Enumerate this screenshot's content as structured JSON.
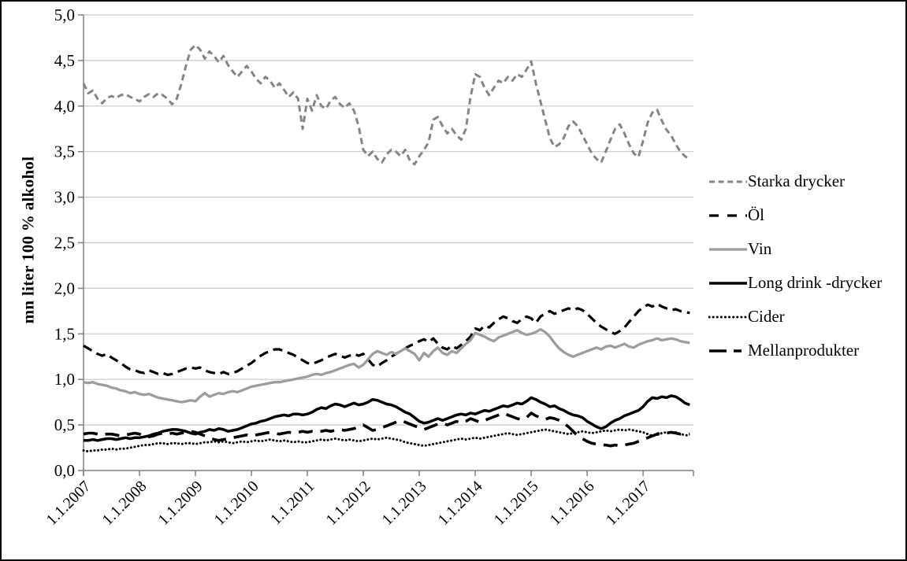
{
  "figure": {
    "background": "#ffffff",
    "border_color": "#000000"
  },
  "chart_data": {
    "type": "line",
    "title": "",
    "xlabel": "",
    "ylabel": "mn liter 100 % alkohol",
    "ylim": [
      0,
      5
    ],
    "ytick_step": 0.5,
    "ytick_labels": [
      "0,0",
      "0,5",
      "1,0",
      "1,5",
      "2,0",
      "2,5",
      "3,0",
      "3,5",
      "4,0",
      "4,5",
      "5,0"
    ],
    "xtick_labels": [
      "1.1.2007",
      "1.1.2008",
      "1.1.2009",
      "1.1.2010",
      "1.1.2011",
      "1.1.2012",
      "1.1.2013",
      "1.1.2014",
      "1.1.2015",
      "1.1.2016",
      "1.1.2017"
    ],
    "points_per_year": 12,
    "grid": "horizontal",
    "gridline_color": "#c9c9c9",
    "axis_color": "#808080",
    "legend_position": "right",
    "series": [
      {
        "name": "Starka drycker",
        "color": "#858585",
        "style": "dash",
        "width": 3,
        "dash": "8,5",
        "legend_dash": "7,4.6",
        "values": [
          4.25,
          4.14,
          4.17,
          4.08,
          4.03,
          4.09,
          4.11,
          4.09,
          4.12,
          4.13,
          4.1,
          4.08,
          4.05,
          4.1,
          4.13,
          4.1,
          4.14,
          4.12,
          4.08,
          4.02,
          4.08,
          4.25,
          4.45,
          4.62,
          4.67,
          4.62,
          4.52,
          4.6,
          4.55,
          4.48,
          4.55,
          4.45,
          4.38,
          4.32,
          4.38,
          4.44,
          4.38,
          4.3,
          4.25,
          4.32,
          4.28,
          4.2,
          4.25,
          4.18,
          4.1,
          4.15,
          4.08,
          3.75,
          4.08,
          3.95,
          4.12,
          4.0,
          3.97,
          4.06,
          4.1,
          4.02,
          3.98,
          4.03,
          3.95,
          3.78,
          3.52,
          3.45,
          3.5,
          3.42,
          3.38,
          3.47,
          3.52,
          3.5,
          3.45,
          3.52,
          3.4,
          3.36,
          3.45,
          3.52,
          3.6,
          3.85,
          3.88,
          3.78,
          3.7,
          3.75,
          3.68,
          3.63,
          3.75,
          4.1,
          4.35,
          4.32,
          4.2,
          4.12,
          4.2,
          4.28,
          4.25,
          4.32,
          4.28,
          4.35,
          4.32,
          4.4,
          4.49,
          4.25,
          4.05,
          3.85,
          3.65,
          3.55,
          3.58,
          3.65,
          3.78,
          3.83,
          3.78,
          3.68,
          3.58,
          3.48,
          3.42,
          3.38,
          3.5,
          3.63,
          3.75,
          3.8,
          3.7,
          3.58,
          3.48,
          3.44,
          3.62,
          3.82,
          3.93,
          3.96,
          3.84,
          3.74,
          3.68,
          3.58,
          3.5,
          3.45,
          3.41
        ]
      },
      {
        "name": "Öl",
        "color": "#000000",
        "style": "dash",
        "width": 3.2,
        "dash": "12,7",
        "legend_dash": "12,11",
        "values": [
          1.37,
          1.34,
          1.31,
          1.28,
          1.26,
          1.28,
          1.24,
          1.21,
          1.18,
          1.14,
          1.11,
          1.1,
          1.08,
          1.07,
          1.1,
          1.08,
          1.06,
          1.07,
          1.05,
          1.06,
          1.08,
          1.1,
          1.12,
          1.13,
          1.12,
          1.13,
          1.1,
          1.08,
          1.07,
          1.06,
          1.08,
          1.06,
          1.07,
          1.09,
          1.12,
          1.15,
          1.18,
          1.22,
          1.26,
          1.29,
          1.31,
          1.33,
          1.33,
          1.31,
          1.29,
          1.27,
          1.24,
          1.21,
          1.18,
          1.17,
          1.19,
          1.21,
          1.24,
          1.26,
          1.28,
          1.26,
          1.24,
          1.26,
          1.28,
          1.26,
          1.28,
          1.22,
          1.16,
          1.14,
          1.18,
          1.21,
          1.25,
          1.28,
          1.31,
          1.34,
          1.37,
          1.39,
          1.42,
          1.44,
          1.41,
          1.45,
          1.39,
          1.35,
          1.33,
          1.37,
          1.34,
          1.38,
          1.42,
          1.47,
          1.56,
          1.54,
          1.59,
          1.57,
          1.62,
          1.66,
          1.69,
          1.67,
          1.64,
          1.62,
          1.66,
          1.69,
          1.67,
          1.62,
          1.69,
          1.72,
          1.75,
          1.72,
          1.74,
          1.76,
          1.78,
          1.76,
          1.78,
          1.76,
          1.72,
          1.67,
          1.62,
          1.58,
          1.55,
          1.52,
          1.5,
          1.53,
          1.57,
          1.63,
          1.69,
          1.75,
          1.79,
          1.82,
          1.8,
          1.83,
          1.8,
          1.78,
          1.76,
          1.77,
          1.75,
          1.74,
          1.73
        ]
      },
      {
        "name": "Vin",
        "color": "#9d9d9d",
        "style": "solid",
        "width": 3.3,
        "dash": "",
        "legend_dash": "",
        "values": [
          0.97,
          0.96,
          0.97,
          0.95,
          0.94,
          0.93,
          0.91,
          0.9,
          0.88,
          0.87,
          0.85,
          0.86,
          0.84,
          0.83,
          0.84,
          0.82,
          0.8,
          0.79,
          0.78,
          0.77,
          0.76,
          0.75,
          0.76,
          0.77,
          0.76,
          0.81,
          0.85,
          0.81,
          0.83,
          0.85,
          0.84,
          0.86,
          0.87,
          0.86,
          0.88,
          0.9,
          0.92,
          0.93,
          0.94,
          0.95,
          0.96,
          0.97,
          0.97,
          0.98,
          0.99,
          1.0,
          1.01,
          1.02,
          1.03,
          1.05,
          1.06,
          1.05,
          1.07,
          1.08,
          1.1,
          1.12,
          1.14,
          1.16,
          1.17,
          1.13,
          1.16,
          1.22,
          1.28,
          1.31,
          1.29,
          1.27,
          1.3,
          1.28,
          1.31,
          1.34,
          1.31,
          1.28,
          1.21,
          1.29,
          1.25,
          1.31,
          1.35,
          1.29,
          1.27,
          1.31,
          1.29,
          1.34,
          1.39,
          1.43,
          1.51,
          1.49,
          1.47,
          1.44,
          1.42,
          1.46,
          1.48,
          1.5,
          1.52,
          1.54,
          1.51,
          1.49,
          1.5,
          1.52,
          1.55,
          1.52,
          1.47,
          1.4,
          1.34,
          1.3,
          1.27,
          1.25,
          1.27,
          1.29,
          1.31,
          1.33,
          1.35,
          1.33,
          1.36,
          1.37,
          1.35,
          1.37,
          1.39,
          1.36,
          1.35,
          1.38,
          1.4,
          1.42,
          1.43,
          1.45,
          1.43,
          1.44,
          1.45,
          1.44,
          1.42,
          1.41,
          1.4
        ]
      },
      {
        "name": "Long drink -drycker",
        "color": "#000000",
        "style": "solid",
        "width": 3.5,
        "dash": "",
        "legend_dash": "",
        "values": [
          0.33,
          0.33,
          0.34,
          0.33,
          0.34,
          0.35,
          0.35,
          0.34,
          0.35,
          0.36,
          0.35,
          0.36,
          0.36,
          0.37,
          0.38,
          0.4,
          0.41,
          0.43,
          0.44,
          0.45,
          0.45,
          0.44,
          0.43,
          0.41,
          0.4,
          0.42,
          0.43,
          0.45,
          0.44,
          0.46,
          0.45,
          0.43,
          0.44,
          0.45,
          0.47,
          0.49,
          0.51,
          0.52,
          0.54,
          0.55,
          0.57,
          0.59,
          0.6,
          0.61,
          0.6,
          0.62,
          0.62,
          0.61,
          0.62,
          0.64,
          0.67,
          0.69,
          0.68,
          0.71,
          0.73,
          0.72,
          0.7,
          0.72,
          0.74,
          0.72,
          0.73,
          0.75,
          0.78,
          0.77,
          0.75,
          0.73,
          0.72,
          0.7,
          0.67,
          0.64,
          0.62,
          0.58,
          0.54,
          0.52,
          0.53,
          0.55,
          0.57,
          0.55,
          0.57,
          0.59,
          0.61,
          0.62,
          0.61,
          0.63,
          0.62,
          0.64,
          0.66,
          0.65,
          0.67,
          0.69,
          0.71,
          0.7,
          0.72,
          0.74,
          0.73,
          0.76,
          0.8,
          0.78,
          0.75,
          0.73,
          0.7,
          0.71,
          0.68,
          0.66,
          0.63,
          0.61,
          0.6,
          0.58,
          0.54,
          0.51,
          0.48,
          0.46,
          0.48,
          0.52,
          0.55,
          0.57,
          0.6,
          0.62,
          0.64,
          0.66,
          0.7,
          0.76,
          0.8,
          0.79,
          0.81,
          0.8,
          0.82,
          0.81,
          0.78,
          0.74,
          0.72
        ]
      },
      {
        "name": "Cider",
        "color": "#000000",
        "style": "dot",
        "width": 3,
        "dash": "0.1,4.6",
        "legend_dash": "0.1,5",
        "values": [
          0.22,
          0.21,
          0.22,
          0.22,
          0.23,
          0.23,
          0.24,
          0.23,
          0.24,
          0.24,
          0.25,
          0.26,
          0.27,
          0.28,
          0.28,
          0.29,
          0.3,
          0.3,
          0.29,
          0.3,
          0.3,
          0.29,
          0.3,
          0.3,
          0.29,
          0.3,
          0.31,
          0.31,
          0.32,
          0.31,
          0.32,
          0.31,
          0.3,
          0.31,
          0.32,
          0.31,
          0.32,
          0.33,
          0.32,
          0.33,
          0.34,
          0.33,
          0.32,
          0.33,
          0.32,
          0.31,
          0.32,
          0.31,
          0.31,
          0.32,
          0.33,
          0.34,
          0.33,
          0.34,
          0.35,
          0.34,
          0.33,
          0.34,
          0.33,
          0.32,
          0.33,
          0.34,
          0.35,
          0.34,
          0.35,
          0.36,
          0.35,
          0.34,
          0.33,
          0.31,
          0.3,
          0.29,
          0.28,
          0.27,
          0.28,
          0.29,
          0.3,
          0.31,
          0.32,
          0.33,
          0.34,
          0.35,
          0.34,
          0.35,
          0.36,
          0.35,
          0.36,
          0.37,
          0.38,
          0.39,
          0.4,
          0.41,
          0.4,
          0.39,
          0.4,
          0.41,
          0.42,
          0.43,
          0.44,
          0.45,
          0.44,
          0.43,
          0.42,
          0.41,
          0.4,
          0.41,
          0.42,
          0.43,
          0.42,
          0.41,
          0.42,
          0.43,
          0.44,
          0.43,
          0.44,
          0.45,
          0.44,
          0.45,
          0.44,
          0.43,
          0.42,
          0.4,
          0.38,
          0.39,
          0.41,
          0.42,
          0.41,
          0.42,
          0.4,
          0.39,
          0.38
        ]
      },
      {
        "name": "Mellanprodukter",
        "color": "#000000",
        "style": "longdash",
        "width": 3.6,
        "dash": "18,10",
        "legend_dash": "22,9,10,40",
        "values": [
          0.4,
          0.41,
          0.41,
          0.4,
          0.39,
          0.4,
          0.4,
          0.39,
          0.38,
          0.39,
          0.4,
          0.41,
          0.4,
          0.38,
          0.37,
          0.38,
          0.4,
          0.41,
          0.4,
          0.41,
          0.4,
          0.41,
          0.42,
          0.43,
          0.42,
          0.4,
          0.38,
          0.36,
          0.34,
          0.33,
          0.34,
          0.35,
          0.36,
          0.37,
          0.38,
          0.39,
          0.38,
          0.39,
          0.4,
          0.41,
          0.42,
          0.41,
          0.4,
          0.41,
          0.42,
          0.41,
          0.42,
          0.43,
          0.42,
          0.43,
          0.42,
          0.43,
          0.44,
          0.43,
          0.44,
          0.45,
          0.44,
          0.45,
          0.46,
          0.48,
          0.5,
          0.47,
          0.44,
          0.45,
          0.47,
          0.49,
          0.51,
          0.53,
          0.55,
          0.53,
          0.51,
          0.49,
          0.47,
          0.45,
          0.47,
          0.49,
          0.51,
          0.52,
          0.5,
          0.52,
          0.54,
          0.52,
          0.54,
          0.57,
          0.55,
          0.53,
          0.55,
          0.57,
          0.59,
          0.61,
          0.63,
          0.61,
          0.59,
          0.57,
          0.56,
          0.58,
          0.63,
          0.6,
          0.58,
          0.56,
          0.58,
          0.57,
          0.55,
          0.52,
          0.48,
          0.43,
          0.38,
          0.35,
          0.32,
          0.3,
          0.29,
          0.28,
          0.28,
          0.27,
          0.28,
          0.27,
          0.28,
          0.29,
          0.3,
          0.32,
          0.34,
          0.36,
          0.38,
          0.4,
          0.42,
          0.41,
          0.42,
          0.41,
          0.4,
          0.4,
          0.4
        ]
      }
    ]
  }
}
